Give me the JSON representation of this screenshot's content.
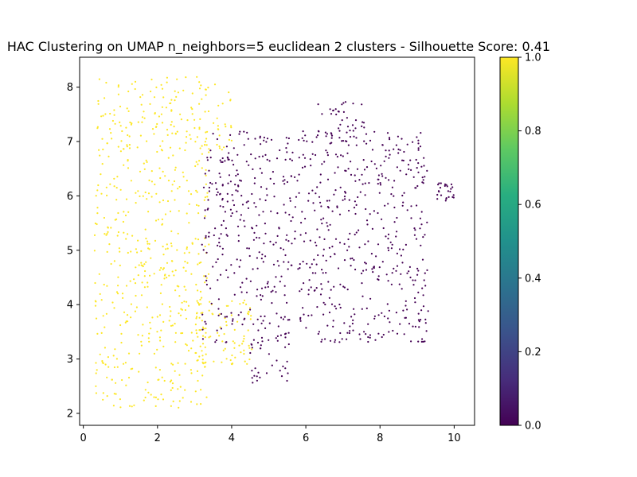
{
  "chart_data": {
    "type": "scatter",
    "title": "HAC Clustering on UMAP n_neighbors=5 euclidean 2 clusters - Silhouette Score: 0.41",
    "xlabel": "",
    "ylabel": "",
    "xlim": [
      -0.1,
      10.55
    ],
    "ylim": [
      1.78,
      8.55
    ],
    "x_ticks": [
      0,
      2,
      4,
      6,
      8,
      10
    ],
    "y_ticks": [
      2,
      3,
      4,
      5,
      6,
      7,
      8
    ],
    "grid": false,
    "colorbar": {
      "colormap": "viridis",
      "range": [
        0.0,
        1.0
      ],
      "ticks": [
        "0.0",
        "0.2",
        "0.4",
        "0.6",
        "0.8",
        "1.0"
      ]
    },
    "series": [
      {
        "label_value": 1,
        "color": "#fde725",
        "regions": [
          {
            "x": [
              0.3,
              3.4
            ],
            "y": [
              2.1,
              8.2
            ],
            "n": 560
          },
          {
            "x": [
              3.0,
              4.6
            ],
            "y": [
              2.9,
              4.1
            ],
            "n": 90
          },
          {
            "x": [
              2.8,
              4.0
            ],
            "y": [
              6.8,
              8.1
            ],
            "n": 40
          }
        ]
      },
      {
        "label_value": 0,
        "color": "#440154",
        "regions": [
          {
            "x": [
              3.2,
              9.3
            ],
            "y": [
              3.3,
              7.2
            ],
            "n": 780
          },
          {
            "x": [
              6.3,
              7.6
            ],
            "y": [
              7.0,
              7.75
            ],
            "n": 40
          },
          {
            "x": [
              4.5,
              5.6
            ],
            "y": [
              2.55,
              3.4
            ],
            "n": 35
          },
          {
            "x": [
              9.5,
              10.0
            ],
            "y": [
              5.9,
              6.25
            ],
            "n": 25
          }
        ]
      }
    ]
  }
}
